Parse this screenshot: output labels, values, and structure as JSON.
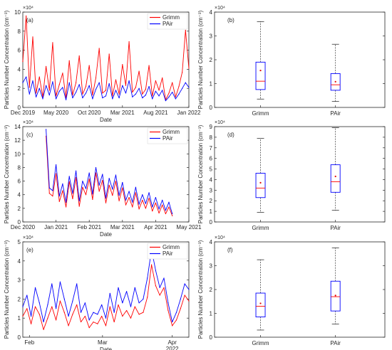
{
  "chart_data": [
    {
      "panel": "(a)",
      "type": "line",
      "xlabel": "Date",
      "ylabel": "Particles Number Concentration (cm⁻³)",
      "exponent": "×10⁴",
      "yticks": [
        "0",
        "2",
        "4",
        "6",
        "8",
        "10"
      ],
      "ylim": [
        0,
        10
      ],
      "xticks": [
        "Dec 2019",
        "May 2020",
        "Oct 2020",
        "Mar 2021",
        "Aug 2021",
        "Jan 2022"
      ],
      "series": [
        {
          "name": "Grimm",
          "color": "#ff0000",
          "x": [
            0,
            0.02,
            0.04,
            0.06,
            0.08,
            0.1,
            0.12,
            0.14,
            0.16,
            0.18,
            0.2,
            0.22,
            0.24,
            0.26,
            0.28,
            0.3,
            0.32,
            0.34,
            0.36,
            0.38,
            0.4,
            0.42,
            0.44,
            0.46,
            0.48,
            0.5,
            0.52,
            0.54,
            0.56,
            0.58,
            0.6,
            0.62,
            0.64,
            0.66,
            0.68,
            0.7,
            0.72,
            0.74,
            0.76,
            0.78,
            0.8,
            0.82,
            0.84,
            0.86,
            0.88,
            0.9,
            0.92,
            0.94,
            0.96,
            0.98,
            1
          ],
          "values": [
            4.8,
            9.6,
            2.1,
            7.4,
            1.5,
            3.2,
            1.1,
            4.3,
            1.8,
            6.8,
            1.2,
            2.4,
            3.6,
            1.0,
            4.9,
            1.3,
            2.6,
            5.4,
            1.4,
            2.2,
            4.4,
            1.3,
            3.1,
            6.2,
            1.5,
            1.8,
            5.6,
            1.2,
            2.9,
            1.4,
            4.5,
            2.3,
            6.9,
            1.6,
            2.1,
            3.8,
            1.4,
            1.9,
            4.4,
            1.2,
            2.8,
            1.8,
            3.1,
            0.8,
            1.5,
            2.6,
            1.1,
            2.2,
            3.7,
            8.1,
            4.1
          ]
        },
        {
          "name": "PAir",
          "color": "#0000ff",
          "x": [
            0,
            0.02,
            0.04,
            0.06,
            0.08,
            0.1,
            0.12,
            0.14,
            0.16,
            0.18,
            0.2,
            0.22,
            0.24,
            0.26,
            0.28,
            0.3,
            0.32,
            0.34,
            0.36,
            0.38,
            0.4,
            0.42,
            0.44,
            0.46,
            0.48,
            0.5,
            0.52,
            0.54,
            0.56,
            0.58,
            0.6,
            0.62,
            0.64,
            0.66,
            0.68,
            0.7,
            0.72,
            0.74,
            0.76,
            0.78,
            0.8,
            0.82,
            0.84,
            0.86,
            0.88,
            0.9,
            0.92,
            0.94,
            0.96,
            0.98,
            1
          ],
          "values": [
            2.6,
            3.2,
            1.4,
            2.8,
            1.1,
            2.0,
            0.9,
            2.3,
            1.3,
            2.7,
            0.9,
            1.7,
            2.1,
            0.8,
            2.6,
            1.0,
            1.6,
            2.4,
            1.0,
            1.5,
            2.3,
            0.9,
            1.9,
            2.6,
            1.0,
            1.2,
            2.5,
            0.9,
            1.8,
            1.0,
            2.3,
            1.5,
            2.8,
            1.1,
            1.4,
            2.0,
            1.0,
            1.3,
            2.2,
            0.9,
            1.7,
            1.2,
            1.8,
            0.7,
            1.1,
            1.6,
            0.9,
            1.4,
            2.0,
            2.6,
            2.1
          ]
        }
      ]
    },
    {
      "panel": "(b)",
      "type": "box",
      "ylabel": "Particles Number Concentration (cm⁻³)",
      "exponent": "×10⁴",
      "yticks": [
        "0",
        "1",
        "2",
        "3",
        "4"
      ],
      "ylim": [
        0,
        4
      ],
      "categories": [
        "Grimm",
        "PAir"
      ],
      "boxes": [
        {
          "whisker_low": 0.35,
          "q1": 0.75,
          "median": 1.1,
          "q3": 1.9,
          "whisker_high": 3.6,
          "mean": 1.55
        },
        {
          "whisker_low": 0.25,
          "q1": 0.72,
          "median": 0.95,
          "q3": 1.42,
          "whisker_high": 2.65,
          "mean": 1.08
        }
      ]
    },
    {
      "panel": "(c)",
      "type": "line",
      "xlabel": "Date",
      "ylabel": "Particles Number Concentration (cm⁻³)",
      "exponent": "×10⁴",
      "yticks": [
        "0",
        "2",
        "4",
        "6",
        "8",
        "10",
        "12",
        "14"
      ],
      "ylim": [
        0,
        14
      ],
      "xticks": [
        "Dec 2020",
        "Jan 2021",
        "Feb 2021",
        "Mar 2021",
        "Apr 2021",
        "May 2021"
      ],
      "series": [
        {
          "name": "Grimm",
          "color": "#ff0000",
          "x": [
            0.14,
            0.16,
            0.18,
            0.2,
            0.22,
            0.24,
            0.26,
            0.28,
            0.3,
            0.32,
            0.34,
            0.36,
            0.38,
            0.4,
            0.42,
            0.44,
            0.46,
            0.48,
            0.5,
            0.52,
            0.54,
            0.56,
            0.58,
            0.6,
            0.62,
            0.64,
            0.66,
            0.68,
            0.7,
            0.72,
            0.74,
            0.76,
            0.78,
            0.8,
            0.82,
            0.84,
            0.86,
            0.88,
            0.9
          ],
          "values": [
            12.6,
            4.2,
            3.8,
            7.1,
            3.0,
            4.6,
            2.2,
            5.9,
            3.4,
            6.5,
            2.3,
            5.1,
            4.0,
            6.3,
            3.3,
            7.2,
            4.5,
            6.1,
            2.8,
            5.4,
            3.9,
            6.0,
            3.1,
            5.0,
            2.5,
            3.6,
            2.2,
            4.3,
            1.9,
            3.2,
            2.0,
            3.5,
            1.6,
            2.8,
            1.3,
            2.5,
            1.2,
            2.2,
            0.9
          ]
        },
        {
          "name": "PAir",
          "color": "#0000ff",
          "x": [
            0.14,
            0.16,
            0.18,
            0.2,
            0.22,
            0.24,
            0.26,
            0.28,
            0.3,
            0.32,
            0.34,
            0.36,
            0.38,
            0.4,
            0.42,
            0.44,
            0.46,
            0.48,
            0.5,
            0.52,
            0.54,
            0.56,
            0.58,
            0.6,
            0.62,
            0.64,
            0.66,
            0.68,
            0.7,
            0.72,
            0.74,
            0.76,
            0.78,
            0.8,
            0.82,
            0.84,
            0.86,
            0.88,
            0.9
          ],
          "values": [
            13.6,
            5.0,
            4.6,
            8.4,
            3.8,
            5.6,
            2.9,
            6.7,
            4.2,
            7.5,
            3.1,
            6.0,
            4.9,
            7.2,
            4.1,
            8.0,
            5.4,
            7.0,
            3.5,
            6.4,
            4.8,
            6.9,
            3.9,
            5.8,
            3.2,
            4.5,
            2.9,
            5.1,
            2.6,
            4.0,
            2.7,
            4.3,
            2.2,
            3.6,
            1.9,
            3.2,
            1.7,
            2.9,
            1.2
          ]
        }
      ]
    },
    {
      "panel": "(d)",
      "type": "box",
      "ylabel": "Particles Number Concentration (cm⁻³)",
      "exponent": "×10⁴",
      "yticks": [
        "0",
        "1",
        "2",
        "3",
        "4",
        "5",
        "6",
        "7",
        "8",
        "9"
      ],
      "ylim": [
        0,
        9
      ],
      "categories": [
        "Grimm",
        "PAir"
      ],
      "boxes": [
        {
          "whisker_low": 0.9,
          "q1": 2.3,
          "median": 3.2,
          "q3": 4.6,
          "whisker_high": 7.9,
          "mean": 3.7
        },
        {
          "whisker_low": 1.1,
          "q1": 2.8,
          "median": 3.8,
          "q3": 5.4,
          "whisker_high": 8.9,
          "mean": 4.3
        }
      ]
    },
    {
      "panel": "(e)",
      "type": "line",
      "xlabel": "Date",
      "ylabel": "Particles Number Concentration (cm⁻³)",
      "exponent": "×10⁴",
      "yticks": [
        "0",
        "1",
        "2",
        "3",
        "4",
        "5"
      ],
      "ylim": [
        0,
        5
      ],
      "xticks": [
        "Feb",
        "Mar",
        "Apr\n2022"
      ],
      "series": [
        {
          "name": "Grimm",
          "color": "#ff0000",
          "x": [
            0,
            0.025,
            0.05,
            0.075,
            0.1,
            0.125,
            0.15,
            0.175,
            0.2,
            0.225,
            0.25,
            0.275,
            0.3,
            0.325,
            0.35,
            0.375,
            0.4,
            0.425,
            0.45,
            0.475,
            0.5,
            0.525,
            0.55,
            0.575,
            0.6,
            0.625,
            0.65,
            0.675,
            0.7,
            0.725,
            0.75,
            0.775,
            0.8,
            0.825,
            0.85,
            0.875,
            0.9,
            0.925,
            0.95,
            0.975,
            1
          ],
          "values": [
            1.1,
            1.5,
            0.7,
            1.6,
            1.2,
            0.4,
            1.0,
            1.6,
            0.9,
            1.9,
            1.3,
            0.6,
            1.2,
            1.7,
            0.8,
            1.1,
            0.5,
            0.8,
            0.7,
            1.1,
            0.6,
            1.6,
            0.8,
            1.7,
            1.1,
            1.4,
            1.0,
            1.6,
            1.2,
            1.3,
            2.1,
            3.8,
            2.7,
            2.2,
            2.6,
            1.4,
            0.6,
            0.9,
            1.5,
            2.2,
            1.9
          ]
        },
        {
          "name": "PAir",
          "color": "#0000ff",
          "x": [
            0,
            0.025,
            0.05,
            0.075,
            0.1,
            0.125,
            0.15,
            0.175,
            0.2,
            0.225,
            0.25,
            0.275,
            0.3,
            0.325,
            0.35,
            0.375,
            0.4,
            0.425,
            0.45,
            0.475,
            0.5,
            0.525,
            0.55,
            0.575,
            0.6,
            0.625,
            0.65,
            0.675,
            0.7,
            0.725,
            0.75,
            0.775,
            0.8,
            0.825,
            0.85,
            0.875,
            0.9,
            0.925,
            0.95,
            0.975,
            1
          ],
          "values": [
            1.6,
            2.2,
            1.1,
            2.6,
            1.8,
            0.8,
            1.7,
            2.8,
            1.5,
            2.9,
            2.0,
            1.1,
            1.9,
            2.8,
            1.3,
            1.8,
            0.9,
            1.3,
            1.2,
            1.7,
            1.0,
            2.3,
            1.3,
            2.6,
            1.8,
            2.4,
            1.6,
            2.6,
            1.8,
            2.0,
            3.1,
            4.6,
            3.5,
            2.6,
            3.1,
            1.8,
            0.8,
            1.3,
            2.0,
            2.8,
            2.5
          ]
        }
      ]
    },
    {
      "panel": "(f)",
      "type": "box",
      "ylabel": "Particles Number Concentration (cm⁻³)",
      "exponent": "×10⁴",
      "yticks": [
        "0",
        "1",
        "2",
        "3",
        "4"
      ],
      "ylim": [
        0,
        4
      ],
      "categories": [
        "Grimm",
        "PAir"
      ],
      "boxes": [
        {
          "whisker_low": 0.3,
          "q1": 0.85,
          "median": 1.3,
          "q3": 1.85,
          "whisker_high": 3.25,
          "mean": 1.42
        },
        {
          "whisker_low": 0.55,
          "q1": 1.1,
          "median": 1.7,
          "q3": 2.35,
          "whisker_high": 3.75,
          "mean": 1.75
        }
      ]
    }
  ]
}
